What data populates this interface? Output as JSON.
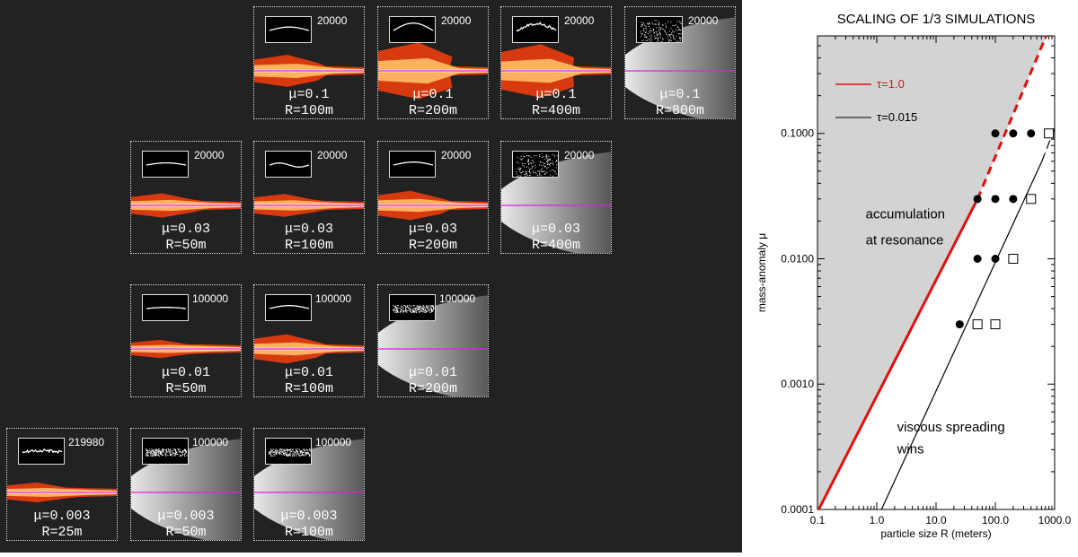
{
  "sim_panels": [
    {
      "row": 0,
      "col": 2,
      "count": "20000",
      "mu": "μ=0.1",
      "r": "R=100m",
      "style": "fire",
      "inset": "curve",
      "amp": 0.35
    },
    {
      "row": 0,
      "col": 3,
      "count": "20000",
      "mu": "μ=0.1",
      "r": "R=200m",
      "style": "fire",
      "inset": "curve",
      "amp": 0.75
    },
    {
      "row": 0,
      "col": 4,
      "count": "20000",
      "mu": "μ=0.1",
      "r": "R=400m",
      "style": "fire",
      "inset": "noisy",
      "amp": 0.7
    },
    {
      "row": 0,
      "col": 5,
      "count": "20000",
      "mu": "μ=0.1",
      "r": "R=800m",
      "style": "gray",
      "inset": "scatter",
      "amp": 0
    },
    {
      "row": 1,
      "col": 1,
      "count": "20000",
      "mu": "μ=0.03",
      "r": "R=50m",
      "style": "fire",
      "inset": "curve",
      "amp": 0.22
    },
    {
      "row": 1,
      "col": 2,
      "count": "20000",
      "mu": "μ=0.03",
      "r": "R=100m",
      "style": "fire",
      "inset": "wave",
      "amp": 0.2
    },
    {
      "row": 1,
      "col": 3,
      "count": "20000",
      "mu": "μ=0.03",
      "r": "R=200m",
      "style": "fire",
      "inset": "curve",
      "amp": 0.3
    },
    {
      "row": 1,
      "col": 4,
      "count": "20000",
      "mu": "μ=0.03",
      "r": "R=400m",
      "style": "gray",
      "inset": "scatter",
      "amp": 0
    },
    {
      "row": 2,
      "col": 1,
      "count": "100000",
      "mu": "μ=0.01",
      "r": "R=50m",
      "style": "fire",
      "inset": "curve",
      "amp": 0.12
    },
    {
      "row": 2,
      "col": 2,
      "count": "100000",
      "mu": "μ=0.01",
      "r": "R=100m",
      "style": "fire",
      "inset": "curve",
      "amp": 0.3
    },
    {
      "row": 2,
      "col": 3,
      "count": "100000",
      "mu": "μ=0.01",
      "r": "R=200m",
      "style": "gray",
      "inset": "band",
      "amp": 0
    },
    {
      "row": 3,
      "col": 0,
      "count": "219980",
      "mu": "μ=0.003",
      "r": "R=25m",
      "style": "fire",
      "inset": "noisy",
      "amp": 0.15
    },
    {
      "row": 3,
      "col": 1,
      "count": "100000",
      "mu": "μ=0.003",
      "r": "R=50m",
      "style": "gray",
      "inset": "band",
      "amp": 0
    },
    {
      "row": 3,
      "col": 2,
      "count": "100000",
      "mu": "μ=0.003",
      "r": "R=100m",
      "style": "gray",
      "inset": "band",
      "amp": 0
    }
  ],
  "colors": {
    "fire_outer": "#d83a10",
    "fire_inner": "#ffb060",
    "core": "#ffe8c0",
    "magenta": "#e020e0",
    "gray_light": "#e8e8e8",
    "shade": "#d3d3d3",
    "red": "#e01010",
    "panel_bg": "#222222"
  },
  "chart_data": {
    "type": "scatter",
    "title": "SCALING OF 1/3 SIMULATIONS",
    "xlabel": "particle size R (meters)",
    "ylabel": "mass-anomaly μ",
    "xscale": "log",
    "yscale": "log",
    "xlim": [
      0.1,
      1000
    ],
    "ylim": [
      0.0001,
      0.6
    ],
    "x_ticks": [
      0.1,
      1,
      10,
      100,
      1000
    ],
    "x_tick_labels": [
      "0.1",
      "1.0",
      "10.0",
      "100.0",
      "1000.0"
    ],
    "y_ticks": [
      0.0001,
      0.001,
      0.01,
      0.1
    ],
    "y_tick_labels": [
      "0.0001",
      "0.0010",
      "0.0100",
      "0.1000"
    ],
    "legend": [
      {
        "label": "τ=1.0",
        "color": "#e01010",
        "label_color": "#e01010"
      },
      {
        "label": "τ=0.015",
        "color": "#000000",
        "label_color": "#000000"
      }
    ],
    "lines": [
      {
        "name": "τ=1.0",
        "color": "#e01010",
        "solid": [
          [
            0.105,
            0.0001
          ],
          [
            50,
            0.03
          ]
        ],
        "dashed": [
          [
            50,
            0.03
          ],
          [
            720,
            0.6
          ]
        ]
      },
      {
        "name": "τ=0.015",
        "color": "#000000",
        "solid": [
          [
            1.2,
            0.0001
          ],
          [
            610,
            0.06
          ]
        ],
        "dashed": [
          [
            610,
            0.06
          ],
          [
            1000,
            0.11
          ]
        ]
      }
    ],
    "filled_points": [
      [
        100,
        0.1
      ],
      [
        200,
        0.1
      ],
      [
        400,
        0.1
      ],
      [
        50,
        0.03
      ],
      [
        100,
        0.03
      ],
      [
        200,
        0.03
      ],
      [
        50,
        0.01
      ],
      [
        100,
        0.01
      ],
      [
        25,
        0.003
      ]
    ],
    "open_points": [
      [
        800,
        0.1
      ],
      [
        400,
        0.03
      ],
      [
        200,
        0.01
      ],
      [
        50,
        0.003
      ],
      [
        100,
        0.003
      ]
    ],
    "annotations": [
      {
        "text": "accumulation",
        "x": 0.65,
        "y": 0.021
      },
      {
        "text": "at resonance",
        "x": 0.65,
        "y": 0.013
      },
      {
        "text": "viscous spreading",
        "x": 2.2,
        "y": 0.00042
      },
      {
        "text": "wins",
        "x": 2.2,
        "y": 0.00028
      }
    ]
  }
}
